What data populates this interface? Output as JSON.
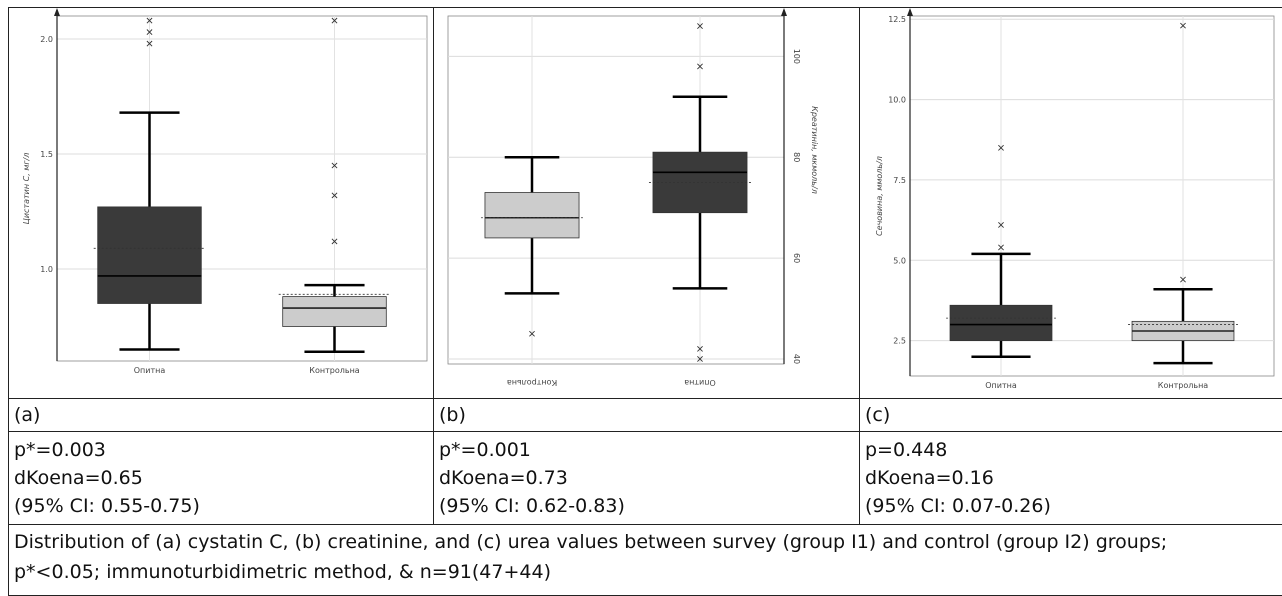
{
  "chart_data": [
    {
      "type": "box",
      "panel": "(a)",
      "ylabel": "Цистатин С, мг/л",
      "yticks": [
        1.0,
        1.5,
        2.0
      ],
      "ylim": [
        0.6,
        2.1
      ],
      "categories": [
        "Опитна",
        "Контрольна"
      ],
      "boxes": [
        {
          "category": "Опитна",
          "min": 0.65,
          "q1": 0.85,
          "median": 0.97,
          "q3": 1.27,
          "max": 1.68,
          "mean": 1.09,
          "outliers": [
            1.98,
            2.03,
            2.08
          ],
          "color": "#3a3a3a"
        },
        {
          "category": "Контрольна",
          "min": 0.64,
          "q1": 0.75,
          "median": 0.83,
          "q3": 0.88,
          "max": 0.93,
          "mean": 0.89,
          "outliers": [
            1.12,
            1.32,
            1.45,
            2.08
          ],
          "color": "#cccccc"
        }
      ]
    },
    {
      "type": "box",
      "panel": "(b)",
      "ylabel": "Креатинін, мкмоль/л",
      "yticks": [
        40,
        60,
        80,
        100
      ],
      "ylim": [
        39,
        108
      ],
      "categories": [
        "Контрольна",
        "Опитна"
      ],
      "boxes": [
        {
          "category": "Контрольна",
          "min": 53,
          "q1": 64,
          "median": 68,
          "q3": 73,
          "max": 80,
          "mean": 68,
          "outliers": [
            45
          ],
          "color": "#cccccc"
        },
        {
          "category": "Опитна",
          "min": 54,
          "q1": 69,
          "median": 77,
          "q3": 81,
          "max": 92,
          "mean": 75,
          "outliers": [
            40,
            42,
            98,
            106
          ],
          "color": "#3a3a3a"
        }
      ]
    },
    {
      "type": "box",
      "panel": "(c)",
      "ylabel": "Сечовина, ммоль/л",
      "yticks": [
        2.5,
        5.0,
        7.5,
        10.0,
        12.5
      ],
      "ylim": [
        1.4,
        12.6
      ],
      "categories": [
        "Опитна",
        "Контрольна"
      ],
      "boxes": [
        {
          "category": "Опитна",
          "min": 2.0,
          "q1": 2.5,
          "median": 3.0,
          "q3": 3.6,
          "max": 5.2,
          "mean": 3.2,
          "outliers": [
            5.4,
            6.1,
            8.5
          ],
          "color": "#3a3a3a"
        },
        {
          "category": "Контрольна",
          "min": 1.8,
          "q1": 2.5,
          "median": 2.8,
          "q3": 3.1,
          "max": 4.1,
          "mean": 3.0,
          "outliers": [
            4.4,
            12.3
          ],
          "color": "#cccccc"
        }
      ]
    }
  ],
  "panels": [
    {
      "label": "(a)",
      "p": "p*=0.003",
      "d": "dKoena=0.65",
      "ci": "(95% CI: 0.55-0.75)"
    },
    {
      "label": "(b)",
      "p": "p*=0.001",
      "d": "dKoena=0.73",
      "ci": "(95% CI: 0.62-0.83)"
    },
    {
      "label": "(c)",
      "p": "p=0.448",
      "d": "dKoena=0.16",
      "ci": "(95% CI: 0.07-0.26)"
    }
  ],
  "caption": {
    "line1": "Distribution of (a) cystatin C, (b) creatinine, and (c) urea values between survey (group I1) and control (group I2) groups;",
    "line2": "p*<0.05; immunoturbidimetric method, & n=91(47+44)"
  }
}
